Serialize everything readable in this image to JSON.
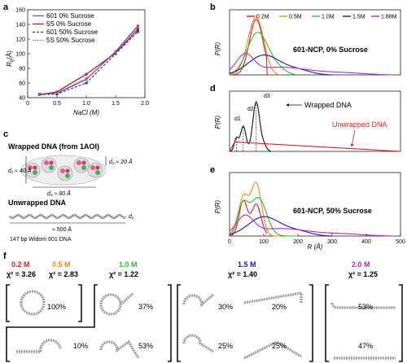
{
  "panel_labels": {
    "a": "a",
    "b": "b",
    "c": "c",
    "d": "d",
    "e": "e",
    "f": "f"
  },
  "colors": {
    "c601_0": "#4a4adf",
    "c5s_0": "#9b1b1b",
    "c601_50": "#2233aa",
    "c5s_50": "#cc5555",
    "s02": "#e21b1b",
    "s05": "#f08a1c",
    "s10": "#2ebd2e",
    "s15": "#1a1aa0",
    "s188": "#b02bd9"
  },
  "chart_data": [
    {
      "type": "line",
      "panel": "a",
      "xlabel": "NaCl (M)",
      "ylabel": "Rg (Å)",
      "ylabel_main": "R",
      "ylabel_sub": "g",
      "ylabel_unit": "(Å)",
      "xlim": [
        0,
        2
      ],
      "ylim": [
        40,
        160
      ],
      "xticks": [
        "0",
        "0.5",
        "1.0",
        "1.5",
        "2.0"
      ],
      "yticks": [
        "40",
        "60",
        "80",
        "100",
        "120",
        "140",
        "160"
      ],
      "legend": [
        "601 0% Sucrose",
        "5S 0% Sucrose",
        "601 50% Sucrose",
        "5S 50% Sucrose"
      ],
      "x": [
        0.2,
        0.5,
        1.0,
        1.5,
        1.88
      ],
      "series": [
        {
          "name": "601 0% Sucrose",
          "values": [
            45,
            46,
            65,
            103,
            138
          ]
        },
        {
          "name": "5S 0% Sucrose",
          "values": [
            44,
            48,
            72,
            101,
            133
          ]
        },
        {
          "name": "601 50% Sucrose",
          "values": [
            44,
            45,
            60,
            100,
            130
          ]
        },
        {
          "name": "5S 50% Sucrose",
          "values": [
            44,
            47,
            66,
            102,
            136
          ]
        }
      ]
    },
    {
      "type": "line",
      "panel": "b",
      "title": "601-NCP, 0% Sucrose",
      "ylabel": "P(R)",
      "xlim": [
        0,
        500
      ],
      "legend": [
        "0.2M",
        "0.5M",
        "1.0M",
        "1.5M",
        "1.88M"
      ],
      "series": [
        {
          "name": "0.2M",
          "peak": 77,
          "dmax": 105
        },
        {
          "name": "0.5M",
          "peak": 80,
          "dmax": 150
        },
        {
          "name": "1.0M",
          "peak": 85,
          "dmax": 200
        },
        {
          "name": "1.5M",
          "peak": 105,
          "dmax": 300
        },
        {
          "name": "1.88M",
          "peak": 40,
          "dmax": 480
        }
      ]
    },
    {
      "type": "line",
      "panel": "d",
      "ylabel": "P(R)",
      "xlim": [
        0,
        500
      ],
      "annotations": [
        "d1",
        "d2",
        "d3",
        "Wrapped DNA",
        "Unwrapped DNA"
      ]
    },
    {
      "type": "line",
      "panel": "e",
      "title": "601-NCP, 50% Sucrose",
      "xlabel": "R (Å)",
      "ylabel": "P(R)",
      "xlim": [
        0,
        500
      ],
      "xticks": [
        "0",
        "100",
        "200",
        "300",
        "400",
        "500"
      ]
    }
  ],
  "panel_c": {
    "wrapped_title": "Wrapped DNA (from 1AOI)",
    "d1": "d₁ ≈ 40 Å",
    "d2": "d₂ ≈ 20 Å",
    "d3": "d₃ ≈ 80 Å",
    "unwrapped_title": "Unwrapped DNA",
    "length": "≈ 500 Å",
    "d1_end": "d₁",
    "caption": "147 bp Widom 601 DNA"
  },
  "panel_f": {
    "groups": [
      {
        "label": "0.2 M",
        "chi": "χ² = 3.26"
      },
      {
        "label": "0.5 M",
        "chi": "χ² = 2.83"
      },
      {
        "label": "1.0 M",
        "chi": "χ² = 1.22"
      },
      {
        "label": "1.5 M",
        "chi": "χ² = 1.40"
      },
      {
        "label": "2.0 M",
        "chi": "χ² = 1.25"
      }
    ],
    "percents": [
      "100%",
      "10%",
      "37%",
      "53%",
      "30%",
      "20%",
      "25%",
      "25%",
      "53%",
      "47%"
    ]
  }
}
